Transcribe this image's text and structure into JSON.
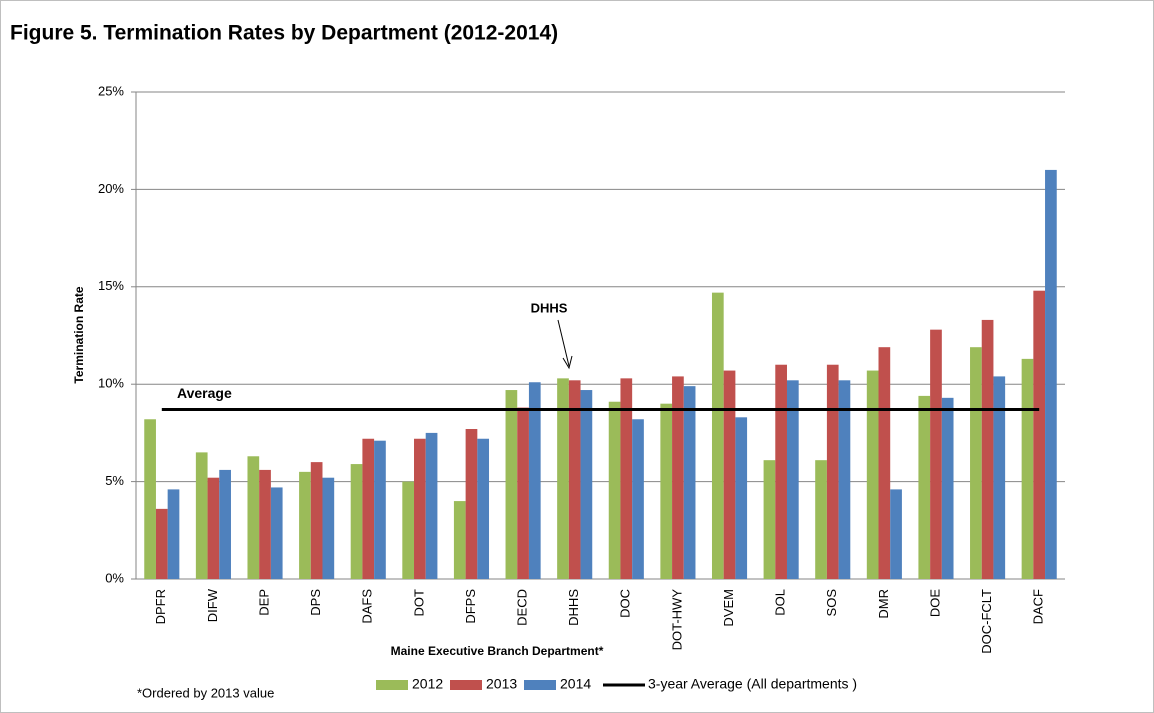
{
  "chart_data": {
    "type": "bar",
    "title": "Figure 5. Termination Rates by Department (2012-2014)",
    "y_label": "Termination Rate",
    "x_label": "Maine Executive Branch Department*",
    "footnote": "*Ordered by 2013 value",
    "annotation": "DHHS",
    "categories": [
      "DPFR",
      "DIFW",
      "DEP",
      "DPS",
      "DAFS",
      "DOT",
      "DFPS",
      "DECD",
      "DHHS",
      "DOC",
      "DOT-HWY",
      "DVEM",
      "DOL",
      "SOS",
      "DMR",
      "DOE",
      "DOC-FCLT",
      "DACF"
    ],
    "series": [
      {
        "name": "2012",
        "color": "#9bbb59",
        "values": [
          8.2,
          6.5,
          6.3,
          5.5,
          5.9,
          5.0,
          4.0,
          9.7,
          10.3,
          9.1,
          9.0,
          14.7,
          6.1,
          6.1,
          10.7,
          9.4,
          11.9,
          11.3
        ]
      },
      {
        "name": "2013",
        "color": "#c0504d",
        "values": [
          3.6,
          5.2,
          5.6,
          6.0,
          7.2,
          7.2,
          7.7,
          8.8,
          10.2,
          10.3,
          10.4,
          10.7,
          11.0,
          11.0,
          11.9,
          12.8,
          13.3,
          14.8
        ]
      },
      {
        "name": "2014",
        "color": "#4f81bd",
        "values": [
          4.6,
          5.6,
          4.7,
          5.2,
          7.1,
          7.5,
          7.2,
          10.1,
          9.7,
          8.2,
          9.9,
          8.3,
          10.2,
          10.2,
          4.6,
          9.3,
          10.4,
          21.0
        ]
      }
    ],
    "average": {
      "name": "3-year Average (All departments )",
      "label": "Average",
      "value": 8.7,
      "color": "#000000"
    },
    "ylim": [
      0,
      25
    ],
    "yticks": [
      {
        "value": 0,
        "label": "0%"
      },
      {
        "value": 5,
        "label": "5%"
      },
      {
        "value": 10,
        "label": "10%"
      },
      {
        "value": 15,
        "label": "15%"
      },
      {
        "value": 20,
        "label": "20%"
      },
      {
        "value": 25,
        "label": "25%"
      }
    ],
    "grid": true,
    "legend": "bottom"
  }
}
